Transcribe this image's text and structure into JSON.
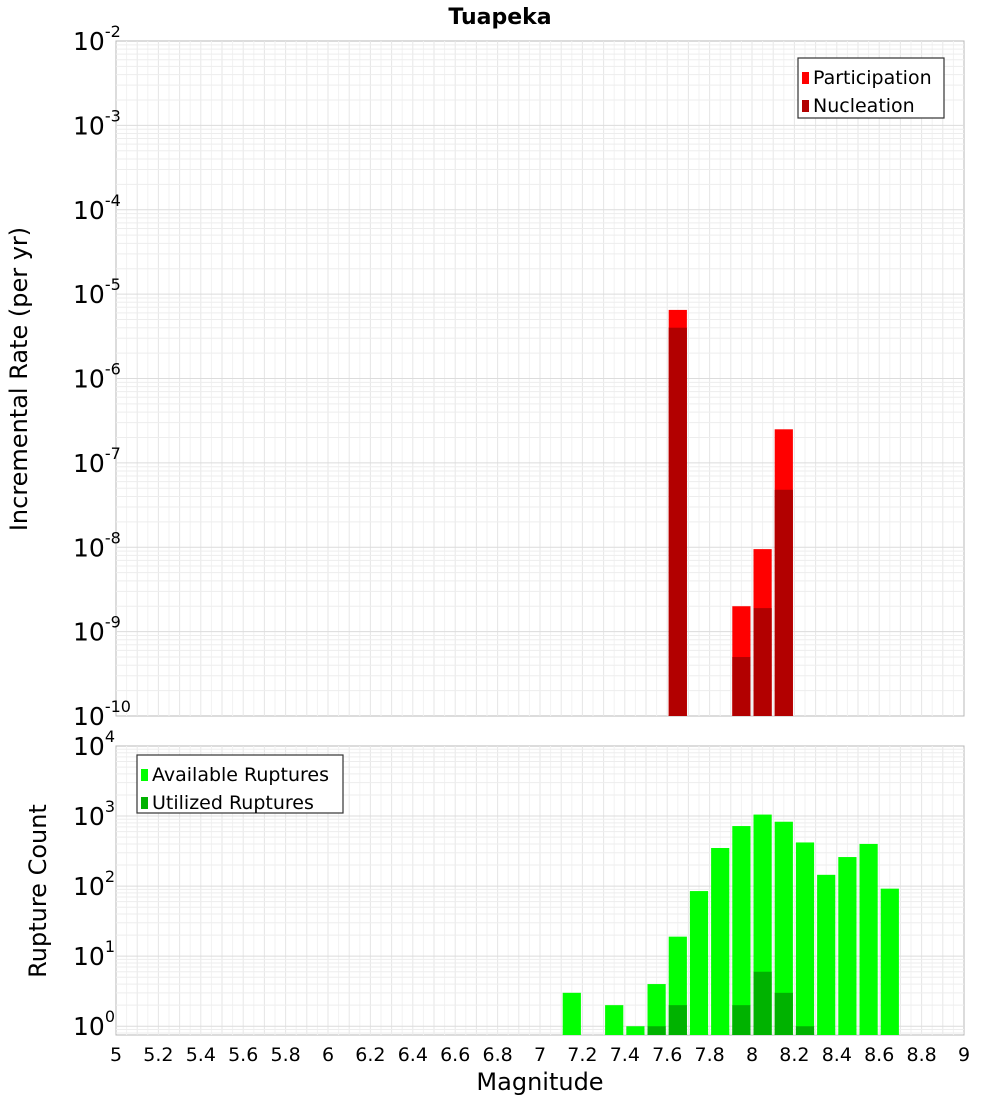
{
  "title": "Tuapeka",
  "chart_data": [
    {
      "type": "bar",
      "panel": "top",
      "ylabel": "Incremental Rate (per yr)",
      "yscale": "log",
      "ylim": [
        1e-10,
        0.01
      ],
      "ytick_exponents": [
        "-2",
        "-3",
        "-4",
        "-5",
        "-6",
        "-7",
        "-8",
        "-9",
        "-10"
      ],
      "ytick_base": "10",
      "bin_width": 0.1,
      "legend_position": "top-right",
      "series": [
        {
          "name": "Participation",
          "color": "#ff0000",
          "x": [
            7.65,
            7.95,
            8.05,
            8.15
          ],
          "values": [
            6.5e-06,
            2e-09,
            9.5e-09,
            2.5e-07
          ]
        },
        {
          "name": "Nucleation",
          "color": "#b20000",
          "x": [
            7.65,
            7.95,
            8.05,
            8.15
          ],
          "values": [
            4e-06,
            5e-10,
            1.9e-09,
            4.8e-08
          ]
        }
      ]
    },
    {
      "type": "bar",
      "panel": "bottom",
      "ylabel": "Rupture Count",
      "xlabel": "Magnitude",
      "yscale": "log",
      "ylim": [
        0.75,
        10000
      ],
      "ytick_exponents": [
        "4",
        "3",
        "2",
        "1",
        "0"
      ],
      "ytick_base": "10",
      "xlim": [
        5,
        9
      ],
      "xticks": [
        "5",
        "5.2",
        "5.4",
        "5.6",
        "5.8",
        "6",
        "6.2",
        "6.4",
        "6.6",
        "6.8",
        "7",
        "7.2",
        "7.4",
        "7.6",
        "7.8",
        "8",
        "8.2",
        "8.4",
        "8.6",
        "8.8",
        "9"
      ],
      "bin_width": 0.1,
      "legend_position": "top-left",
      "series": [
        {
          "name": "Available Ruptures",
          "color": "#00ff00",
          "x": [
            7.15,
            7.35,
            7.45,
            7.55,
            7.65,
            7.75,
            7.85,
            7.95,
            8.05,
            8.15,
            8.25,
            8.35,
            8.45,
            8.55,
            8.65
          ],
          "values": [
            3,
            2,
            1,
            4,
            19,
            85,
            350,
            720,
            1050,
            830,
            420,
            145,
            260,
            400,
            92
          ]
        },
        {
          "name": "Utilized Ruptures",
          "color": "#00b200",
          "x": [
            7.55,
            7.65,
            7.95,
            8.05,
            8.15,
            8.25
          ],
          "values": [
            1,
            2,
            2,
            6,
            3,
            1
          ]
        }
      ]
    }
  ]
}
